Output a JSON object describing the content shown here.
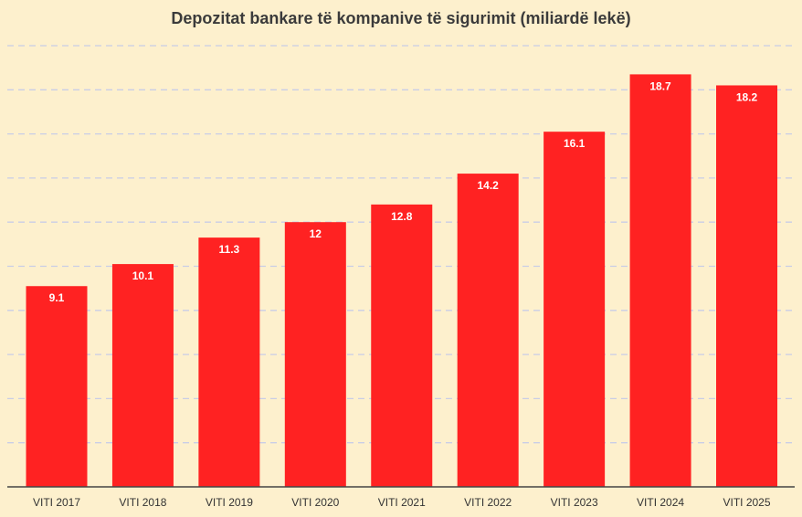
{
  "chart_data": {
    "type": "bar",
    "title": "Depozitat bankare të kompanive të sigurimit (miliardë lekë)",
    "categories": [
      "VITI 2017",
      "VITI 2018",
      "VITI 2019",
      "VITI 2020",
      "VITI 2021",
      "VITI 2022",
      "VITI 2023",
      "VITI 2024",
      "VITI 2025"
    ],
    "values": [
      9.1,
      10.1,
      11.3,
      12,
      12.8,
      14.2,
      16.1,
      18.7,
      18.2
    ],
    "value_labels": [
      "9.1",
      "10.1",
      "11.3",
      "12",
      "12.8",
      "14.2",
      "16.1",
      "18.7",
      "18.2"
    ],
    "ylim": [
      0,
      20
    ],
    "grid": true,
    "legend": "none",
    "bar_color": "#ff2222",
    "background_color": "#fdf0cd"
  }
}
